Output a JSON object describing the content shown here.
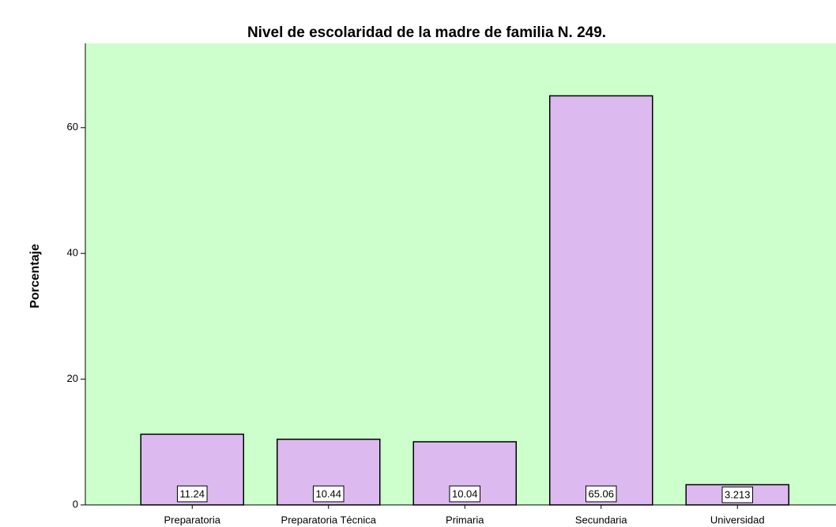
{
  "chart_data": {
    "type": "bar",
    "title": "Nivel de escolaridad de la madre de familia N. 249.",
    "y_label": "Porcentaje",
    "categories": [
      "Preparatoria",
      "Preparatoria Técnica",
      "Primaria",
      "Secundaria",
      "Universidad"
    ],
    "values": [
      11.24,
      10.44,
      10.04,
      65.06,
      3.213
    ],
    "color": "#dcbaf0",
    "background": "#ccffcc",
    "ylim": [
      0,
      73.4
    ],
    "yticks": [
      0,
      20,
      40,
      60
    ],
    "grid": false
  }
}
